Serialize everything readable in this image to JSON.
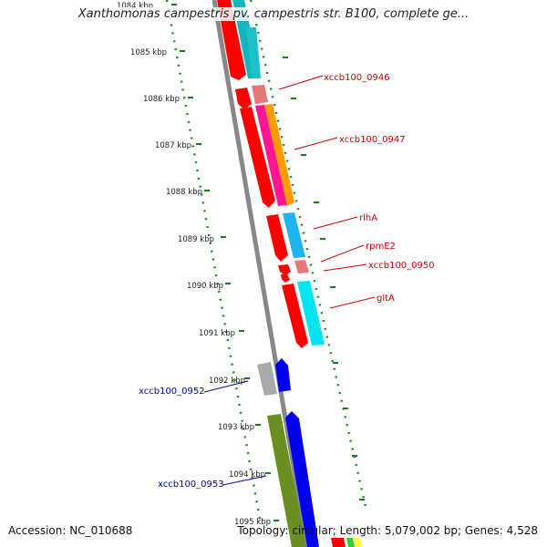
{
  "title": "Xanthomonas campestris pv. campestris str. B100, complete ge...",
  "accession": "Accession: NC_010688",
  "summary": "Topology: circular; Length: 5,079,002 bp; Genes: 4,528",
  "ruler": {
    "ticks": [
      "1084 kbp",
      "1085 kbp",
      "1086 kbp",
      "1087 kbp",
      "1088 kbp",
      "1089 kbp",
      "1090 kbp",
      "1091 kbp",
      "1092 kbp",
      "1093 kbp",
      "1094 kbp",
      "1095 kbp"
    ]
  },
  "gene_labels": [
    {
      "text": "xccb100_0946",
      "color": "#cc0000"
    },
    {
      "text": "xccb100_0947",
      "color": "#cc0000"
    },
    {
      "text": "rlhA",
      "color": "#cc0000"
    },
    {
      "text": "rpmE2",
      "color": "#cc0000"
    },
    {
      "text": "xccb100_0950",
      "color": "#cc0000"
    },
    {
      "text": "gltA",
      "color": "#cc0000"
    },
    {
      "text": "xccb100_0952",
      "color": "#0000aa"
    },
    {
      "text": "xccb100_0953",
      "color": "#0000aa"
    }
  ],
  "colors": {
    "forward_strand": "#ff0000",
    "reverse_strand": "#0000ee",
    "backbone": "#888888",
    "gc_dots": "#228b22"
  }
}
